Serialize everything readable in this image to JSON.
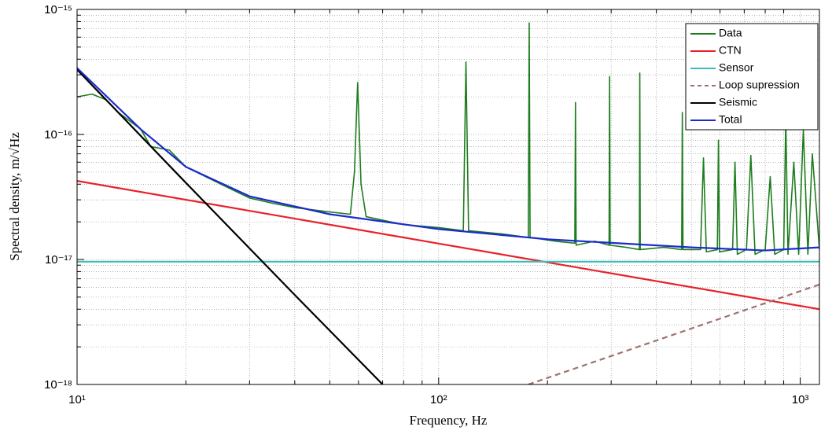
{
  "chart_data": {
    "type": "line",
    "x_label": "Frequency, Hz",
    "y_label": "Spectral density, m/√Hz",
    "xscale": "log",
    "yscale": "log",
    "grid": true,
    "minor_grid": true,
    "legend": "upper right",
    "xlim": [
      10,
      1130
    ],
    "ylim": [
      1e-18,
      1e-15
    ],
    "xticks": [
      {
        "value": 10,
        "label": "10¹"
      },
      {
        "value": 100,
        "label": "10²"
      },
      {
        "value": 1000,
        "label": "10³"
      }
    ],
    "yticks": [
      {
        "value": 1e-18,
        "label": "10⁻¹⁸"
      },
      {
        "value": 1e-17,
        "label": "10⁻¹⁷"
      },
      {
        "value": 1e-16,
        "label": "10⁻¹⁶"
      },
      {
        "value": 1e-15,
        "label": "10⁻¹⁵"
      }
    ],
    "series": [
      {
        "name": "Data",
        "color": "#1e7d1e",
        "dash": false,
        "x": [
          10,
          11,
          12,
          13,
          15,
          16,
          18,
          20,
          25,
          30,
          35,
          40,
          50,
          57,
          58.5,
          59.7,
          61,
          63,
          80,
          100,
          117,
          119,
          121,
          150,
          177,
          178,
          179,
          210,
          238,
          239,
          240,
          270,
          296,
          297,
          298,
          330,
          359,
          360,
          361,
          420,
          470,
          472,
          474,
          530,
          540,
          550,
          590,
          594,
          598,
          650,
          660,
          670,
          710,
          730,
          750,
          800,
          826,
          850,
          900,
          912,
          925,
          960,
          990,
          1020,
          1050,
          1080,
          1130
        ],
        "values": [
          2e-16,
          2.1e-16,
          1.9e-16,
          1.5e-16,
          1.1e-16,
          8e-17,
          7.5e-17,
          5.5e-17,
          4e-17,
          3.1e-17,
          2.8e-17,
          2.6e-17,
          2.4e-17,
          2.3e-17,
          5e-17,
          2.6e-16,
          4e-17,
          2.2e-17,
          1.9e-17,
          1.8e-17,
          1.7e-17,
          3.8e-16,
          1.7e-17,
          1.6e-17,
          1.5e-17,
          7.8e-16,
          1.5e-17,
          1.4e-17,
          1.35e-17,
          1.8e-16,
          1.3e-17,
          1.4e-17,
          1.3e-17,
          2.9e-16,
          1.3e-17,
          1.25e-17,
          1.2e-17,
          3.1e-16,
          1.2e-17,
          1.25e-17,
          1.2e-17,
          1.5e-16,
          1.2e-17,
          1.2e-17,
          6.5e-17,
          1.15e-17,
          1.2e-17,
          9e-17,
          1.15e-17,
          1.2e-17,
          6e-17,
          1.1e-17,
          1.2e-17,
          6.8e-17,
          1.1e-17,
          1.2e-17,
          4.6e-17,
          1.1e-17,
          1.2e-17,
          1.35e-16,
          1.1e-17,
          6e-17,
          1.1e-17,
          1.1e-16,
          1.1e-17,
          7e-17,
          1.2e-17
        ]
      },
      {
        "name": "CTN",
        "color": "#e8212a",
        "dash": false,
        "x": [
          10,
          100,
          1000,
          1130
        ],
        "values": [
          4.25e-17,
          1.34e-17,
          4.25e-18,
          4e-18
        ]
      },
      {
        "name": "Sensor",
        "color": "#3cbcbc",
        "dash": false,
        "x": [
          10,
          1130
        ],
        "values": [
          9.6e-18,
          9.6e-18
        ]
      },
      {
        "name": "Loop supression",
        "color": "#a07070",
        "dash": true,
        "x": [
          177,
          1130
        ],
        "values": [
          1e-18,
          6.3e-18
        ]
      },
      {
        "name": "Seismic",
        "color": "#000000",
        "dash": false,
        "x": [
          10,
          20,
          40,
          70
        ],
        "values": [
          3.3e-16,
          4.1e-17,
          5.2e-18,
          1e-18
        ]
      },
      {
        "name": "Total",
        "color": "#1c2bcc",
        "dash": false,
        "x": [
          10,
          15,
          20,
          30,
          50,
          100,
          200,
          500,
          800,
          1130
        ],
        "values": [
          3.4e-16,
          1.1e-16,
          5.5e-17,
          3.2e-17,
          2.3e-17,
          1.75e-17,
          1.45e-17,
          1.25e-17,
          1.18e-17,
          1.25e-17
        ]
      }
    ]
  }
}
